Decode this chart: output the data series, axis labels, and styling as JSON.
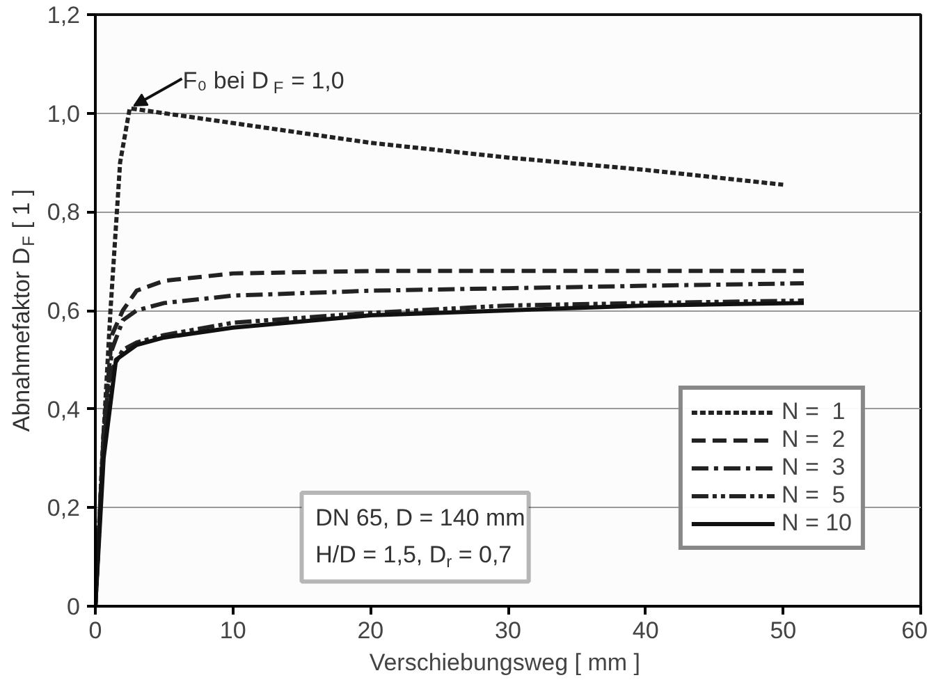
{
  "chart_data": {
    "type": "line",
    "xlabel": "Verschiebungsweg  [ mm ]",
    "ylabel": "Abnahmefaktor D$_{F}$ [ 1 ]",
    "xlim": [
      0,
      60
    ],
    "ylim": [
      0,
      1.2
    ],
    "xticks": [
      0,
      10,
      20,
      30,
      40,
      50,
      60
    ],
    "yticks": [
      {
        "value": 0,
        "label": "0"
      },
      {
        "value": 0.2,
        "label": "0,2"
      },
      {
        "value": 0.4,
        "label": "0,4"
      },
      {
        "value": 0.6,
        "label": "0,6"
      },
      {
        "value": 0.8,
        "label": "0,8"
      },
      {
        "value": 1.0,
        "label": "1,0"
      },
      {
        "value": 1.2,
        "label": "1,2"
      }
    ],
    "grid": "y",
    "legend": "bottom right",
    "marker": "none",
    "annotations": [
      {
        "text": "F₀ bei D$_{F}$ = 1,0",
        "x": 2.5,
        "y": 1.01
      },
      "DN 65, D = 140 mm",
      "H/D = 1,5, D$_{r}$ = 0,7"
    ],
    "series": [
      {
        "name": "N =  1",
        "color": "#222222",
        "line_style": "dotted",
        "x": [
          0,
          0.5,
          1.1,
          1.8,
          2.5,
          5,
          10,
          20,
          30,
          40,
          50
        ],
        "values": [
          0,
          0.3,
          0.6,
          0.9,
          1.01,
          1.0,
          0.98,
          0.94,
          0.91,
          0.885,
          0.855
        ]
      },
      {
        "name": "N =  2",
        "color": "#222222",
        "line_style": "dashed",
        "x": [
          0,
          0.6,
          1.2,
          2,
          3,
          5,
          10,
          20,
          30,
          40,
          51.5
        ],
        "values": [
          0,
          0.35,
          0.55,
          0.6,
          0.64,
          0.66,
          0.675,
          0.68,
          0.68,
          0.68,
          0.68
        ]
      },
      {
        "name": "N =  3",
        "color": "#222222",
        "line_style": "dashdot",
        "x": [
          0,
          0.6,
          1.2,
          2,
          3,
          5,
          10,
          20,
          30,
          40,
          51.5
        ],
        "values": [
          0,
          0.35,
          0.52,
          0.58,
          0.6,
          0.615,
          0.63,
          0.64,
          0.645,
          0.65,
          0.655
        ]
      },
      {
        "name": "N =  5",
        "color": "#222222",
        "line_style": "dashdotdot",
        "x": [
          0,
          0.6,
          1.2,
          2,
          3,
          5,
          10,
          20,
          30,
          40,
          51.5
        ],
        "values": [
          0,
          0.33,
          0.48,
          0.52,
          0.535,
          0.55,
          0.575,
          0.595,
          0.61,
          0.615,
          0.62
        ]
      },
      {
        "name": "N = 10",
        "color": "#111111",
        "line_style": "solid",
        "x": [
          0,
          0.6,
          1.5,
          3,
          5,
          10,
          20,
          30,
          40,
          51.5
        ],
        "values": [
          0,
          0.3,
          0.5,
          0.53,
          0.545,
          0.565,
          0.59,
          0.6,
          0.61,
          0.615
        ]
      }
    ]
  }
}
